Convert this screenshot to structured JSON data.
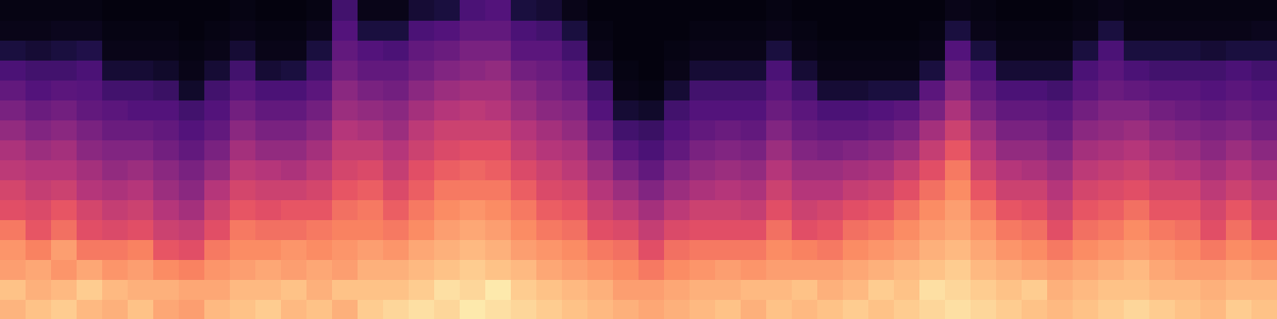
{
  "chart_data": {
    "type": "heatmap",
    "tick_labels": false,
    "zlim": [
      0,
      100
    ],
    "cells": [
      [
        85,
        88,
        80,
        78,
        72,
        62,
        58,
        52,
        48,
        42,
        36,
        30,
        24,
        12,
        4,
        3
      ],
      [
        88,
        84,
        82,
        74,
        64,
        60,
        54,
        50,
        44,
        38,
        32,
        26,
        22,
        10,
        4,
        3
      ],
      [
        90,
        86,
        78,
        80,
        70,
        64,
        56,
        50,
        46,
        40,
        34,
        28,
        22,
        12,
        5,
        3
      ],
      [
        86,
        90,
        82,
        72,
        62,
        58,
        50,
        46,
        40,
        36,
        30,
        27,
        24,
        14,
        5,
        3
      ],
      [
        84,
        86,
        78,
        72,
        60,
        54,
        48,
        42,
        38,
        32,
        28,
        22,
        10,
        4,
        3,
        2
      ],
      [
        88,
        84,
        80,
        74,
        62,
        56,
        50,
        44,
        38,
        32,
        26,
        22,
        10,
        4,
        3,
        2
      ],
      [
        82,
        84,
        76,
        64,
        56,
        50,
        44,
        40,
        34,
        30,
        26,
        20,
        8,
        4,
        3,
        2
      ],
      [
        80,
        82,
        74,
        62,
        54,
        46,
        40,
        36,
        30,
        26,
        22,
        8,
        4,
        3,
        2,
        2
      ],
      [
        86,
        82,
        78,
        72,
        62,
        56,
        50,
        42,
        36,
        30,
        26,
        22,
        10,
        4,
        3,
        2
      ],
      [
        88,
        86,
        80,
        76,
        72,
        64,
        58,
        52,
        46,
        40,
        34,
        28,
        22,
        10,
        4,
        3
      ],
      [
        90,
        86,
        82,
        76,
        70,
        62,
        56,
        50,
        42,
        36,
        30,
        24,
        10,
        4,
        3,
        2
      ],
      [
        86,
        88,
        80,
        78,
        70,
        64,
        56,
        48,
        42,
        36,
        30,
        24,
        12,
        4,
        3,
        2
      ],
      [
        88,
        84,
        82,
        76,
        72,
        64,
        58,
        52,
        46,
        40,
        34,
        28,
        22,
        12,
        5,
        3
      ],
      [
        84,
        88,
        80,
        78,
        74,
        70,
        64,
        58,
        54,
        50,
        44,
        40,
        34,
        30,
        26,
        22
      ],
      [
        90,
        88,
        84,
        80,
        74,
        72,
        66,
        60,
        54,
        48,
        42,
        36,
        30,
        26,
        12,
        4
      ],
      [
        92,
        88,
        84,
        78,
        72,
        66,
        60,
        54,
        50,
        44,
        40,
        34,
        30,
        24,
        12,
        4
      ],
      [
        94,
        90,
        86,
        82,
        76,
        72,
        66,
        62,
        56,
        52,
        46,
        40,
        34,
        30,
        24,
        10
      ],
      [
        92,
        94,
        88,
        84,
        80,
        76,
        72,
        66,
        60,
        56,
        50,
        44,
        38,
        32,
        26,
        12
      ],
      [
        96,
        92,
        90,
        86,
        82,
        78,
        72,
        68,
        62,
        56,
        52,
        46,
        40,
        36,
        30,
        24
      ],
      [
        94,
        96,
        88,
        84,
        80,
        76,
        72,
        66,
        62,
        56,
        50,
        46,
        42,
        36,
        30,
        26
      ],
      [
        92,
        90,
        86,
        80,
        76,
        72,
        66,
        60,
        54,
        50,
        44,
        40,
        34,
        28,
        24,
        12
      ],
      [
        90,
        88,
        82,
        78,
        72,
        66,
        60,
        56,
        50,
        46,
        40,
        36,
        32,
        28,
        22,
        10
      ],
      [
        88,
        86,
        80,
        76,
        70,
        64,
        58,
        52,
        48,
        42,
        38,
        32,
        28,
        22,
        12,
        4
      ],
      [
        86,
        84,
        78,
        72,
        62,
        56,
        50,
        44,
        38,
        32,
        26,
        22,
        10,
        4,
        3,
        2
      ],
      [
        84,
        80,
        76,
        70,
        60,
        52,
        44,
        36,
        28,
        22,
        10,
        4,
        3,
        2,
        2,
        2
      ],
      [
        82,
        80,
        72,
        62,
        54,
        46,
        38,
        30,
        24,
        20,
        8,
        3,
        2,
        2,
        2,
        2
      ],
      [
        84,
        82,
        76,
        70,
        60,
        52,
        44,
        38,
        30,
        26,
        22,
        10,
        4,
        3,
        2,
        2
      ],
      [
        86,
        84,
        78,
        72,
        62,
        56,
        48,
        42,
        36,
        30,
        26,
        22,
        10,
        4,
        3,
        2
      ],
      [
        88,
        84,
        80,
        72,
        62,
        56,
        50,
        44,
        38,
        32,
        26,
        22,
        10,
        4,
        3,
        2
      ],
      [
        84,
        86,
        78,
        72,
        62,
        54,
        48,
        42,
        36,
        30,
        26,
        22,
        10,
        4,
        3,
        2
      ],
      [
        88,
        86,
        80,
        76,
        70,
        62,
        56,
        50,
        44,
        38,
        32,
        28,
        24,
        12,
        4,
        3
      ],
      [
        86,
        88,
        80,
        74,
        62,
        56,
        50,
        44,
        38,
        32,
        28,
        22,
        10,
        4,
        3,
        2
      ],
      [
        88,
        84,
        80,
        72,
        64,
        58,
        50,
        44,
        36,
        30,
        24,
        10,
        4,
        3,
        2,
        2
      ],
      [
        90,
        86,
        82,
        76,
        70,
        62,
        54,
        46,
        38,
        30,
        24,
        10,
        4,
        3,
        2,
        2
      ],
      [
        88,
        90,
        84,
        78,
        72,
        64,
        56,
        48,
        40,
        32,
        26,
        12,
        4,
        3,
        2,
        2
      ],
      [
        90,
        88,
        86,
        80,
        76,
        70,
        62,
        54,
        44,
        36,
        28,
        12,
        4,
        3,
        2,
        2
      ],
      [
        92,
        94,
        88,
        84,
        80,
        76,
        70,
        62,
        54,
        46,
        36,
        28,
        12,
        4,
        3,
        2
      ],
      [
        94,
        92,
        90,
        86,
        82,
        80,
        76,
        72,
        64,
        56,
        48,
        40,
        32,
        26,
        12,
        4
      ],
      [
        92,
        90,
        86,
        82,
        78,
        72,
        64,
        56,
        50,
        44,
        36,
        30,
        24,
        12,
        4,
        3
      ],
      [
        90,
        88,
        84,
        78,
        72,
        64,
        56,
        50,
        42,
        36,
        30,
        24,
        10,
        4,
        3,
        2
      ],
      [
        88,
        90,
        82,
        76,
        70,
        62,
        56,
        48,
        42,
        36,
        30,
        24,
        10,
        4,
        3,
        2
      ],
      [
        86,
        84,
        80,
        72,
        62,
        56,
        50,
        44,
        38,
        32,
        28,
        22,
        10,
        4,
        3,
        2
      ],
      [
        88,
        86,
        82,
        76,
        70,
        64,
        58,
        52,
        46,
        40,
        34,
        28,
        24,
        12,
        4,
        3
      ],
      [
        90,
        88,
        84,
        78,
        72,
        66,
        60,
        54,
        48,
        42,
        38,
        32,
        28,
        24,
        12,
        4
      ],
      [
        92,
        88,
        86,
        80,
        76,
        70,
        62,
        56,
        50,
        44,
        38,
        30,
        24,
        12,
        4,
        3
      ],
      [
        90,
        86,
        82,
        78,
        72,
        64,
        58,
        52,
        46,
        40,
        34,
        28,
        22,
        12,
        4,
        3
      ],
      [
        88,
        86,
        80,
        76,
        70,
        64,
        58,
        50,
        44,
        38,
        32,
        28,
        22,
        12,
        4,
        3
      ],
      [
        86,
        84,
        80,
        72,
        62,
        58,
        52,
        46,
        40,
        36,
        30,
        26,
        22,
        10,
        4,
        3
      ],
      [
        90,
        86,
        82,
        76,
        70,
        64,
        56,
        50,
        44,
        38,
        32,
        28,
        24,
        12,
        4,
        3
      ],
      [
        88,
        86,
        80,
        74,
        62,
        58,
        52,
        46,
        40,
        34,
        30,
        26,
        22,
        12,
        5,
        3
      ]
    ]
  }
}
